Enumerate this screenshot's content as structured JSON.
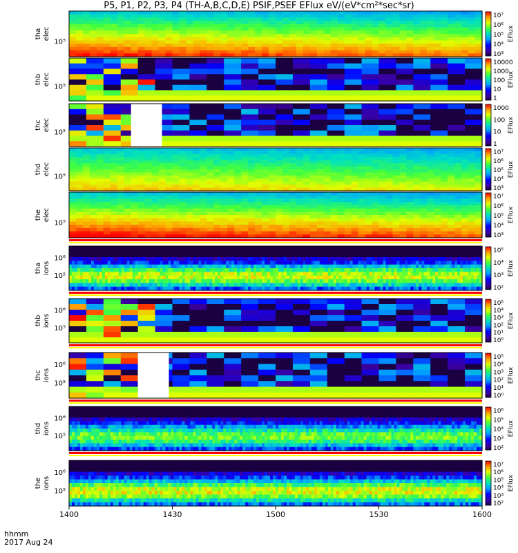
{
  "title": "P5, P1, P2, P3, P4 (TH-A,B,C,D,E) PSIF,PSEF EFlux eV/(eV*cm²*sec*sr)",
  "xaxis": {
    "unit_label": "hhmm",
    "date_label": "2017 Aug 24",
    "ticks": [
      "1400",
      "1430",
      "1500",
      "1530",
      "1600"
    ]
  },
  "chart_data": {
    "type": "heatmap",
    "title": "P5, P1, P2, P3, P4 (TH-A,B,C,D,E) PSIF,PSEF EFlux eV/(eV*cm²*sec*sr)",
    "x_range": [
      "1400",
      "1600"
    ],
    "x_ticks": [
      "1400",
      "1430",
      "1500",
      "1530",
      "1600"
    ],
    "colorbar_label": "EFlux",
    "panels": [
      {
        "label": [
          "tha",
          "elec"
        ],
        "y_tick": "10⁵",
        "cbar_ticks": [
          "10⁷",
          "10⁶",
          "10⁵",
          "10⁴",
          "10³"
        ],
        "style": "smooth",
        "hot": 0.85,
        "bars": false
      },
      {
        "label": [
          "thb",
          "elec"
        ],
        "y_tick": "10⁵",
        "cbar_ticks": [
          "10000",
          "1000",
          "100",
          "10",
          "1"
        ],
        "style": "blocky",
        "hot": 0.35,
        "bars": false
      },
      {
        "label": [
          "thc",
          "elec"
        ],
        "y_tick": "10⁵",
        "cbar_ticks": [
          "1000",
          "100",
          "10",
          "1"
        ],
        "style": "blocky",
        "hot": 0.45,
        "bars": false,
        "gap": [
          1418,
          1427
        ]
      },
      {
        "label": [
          "thd",
          "elec"
        ],
        "y_tick": "10⁵",
        "cbar_ticks": [
          "10⁷",
          "10⁶",
          "10⁵",
          "10⁴",
          "10³"
        ],
        "style": "smooth",
        "hot": 0.6,
        "bars": false
      },
      {
        "label": [
          "the",
          "elec"
        ],
        "y_tick": "10⁵",
        "cbar_ticks": [
          "10⁷",
          "10⁶",
          "10⁵",
          "10⁴",
          "10³"
        ],
        "style": "smooth",
        "hot": 0.9,
        "bars": true
      },
      {
        "label": [
          "tha",
          "ions"
        ],
        "y_tick": "10⁵",
        "y_tick_upper": "10⁶",
        "cbar_ticks": [
          "10⁵",
          "10⁴",
          "10³",
          "10²"
        ],
        "style": "noisy",
        "hot": 0.55,
        "bars": true
      },
      {
        "label": [
          "thb",
          "ions"
        ],
        "y_tick": "10⁵",
        "y_tick_upper": "10⁶",
        "cbar_ticks": [
          "10⁵",
          "10⁴",
          "10³",
          "10²",
          "10¹",
          "10⁰"
        ],
        "style": "blocky",
        "hot": 0.35,
        "bars": true
      },
      {
        "label": [
          "thc",
          "ions"
        ],
        "y_tick": "10⁵",
        "y_tick_upper": "10⁶",
        "cbar_ticks": [
          "10⁵",
          "10⁴",
          "10³",
          "10²",
          "10¹",
          "10⁰"
        ],
        "style": "blocky",
        "hot": 0.45,
        "bars": true,
        "gap": [
          1420,
          1429
        ]
      },
      {
        "label": [
          "thd",
          "ions"
        ],
        "y_tick": "10⁵",
        "y_tick_upper": "10⁶",
        "cbar_ticks": [
          "10⁶",
          "10⁵",
          "10⁴",
          "10³",
          "10²"
        ],
        "style": "noisy",
        "hot": 0.4,
        "bars": true
      },
      {
        "label": [
          "the",
          "ions"
        ],
        "y_tick": "10⁵",
        "y_tick_upper": "10⁶",
        "cbar_ticks": [
          "10⁷",
          "10⁶",
          "10⁵",
          "10⁴",
          "10³",
          "10²"
        ],
        "style": "noisy",
        "hot": 0.6,
        "bars": false
      }
    ]
  }
}
